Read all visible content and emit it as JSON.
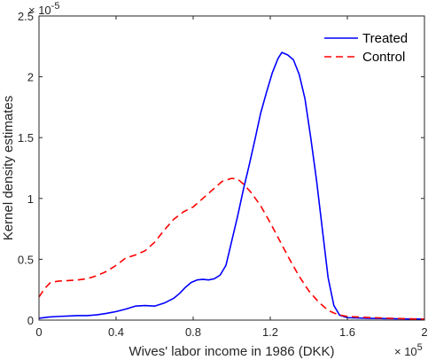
{
  "chart_data": {
    "type": "line",
    "title": "",
    "xlabel": "Wives' labor income in 1986 (DKK)",
    "ylabel": "Kernel density estimates",
    "xlim": [
      0,
      200000
    ],
    "ylim": [
      0,
      2.5e-05
    ],
    "x_ticks": [
      0,
      40000,
      80000,
      120000,
      160000,
      200000
    ],
    "x_tick_labels": [
      "0",
      "0.4",
      "0.8",
      "1.2",
      "1.6",
      "2"
    ],
    "x_multiplier": "× 10",
    "x_multiplier_exp": "5",
    "y_ticks": [
      0,
      5e-06,
      1e-05,
      1.5e-05,
      2e-05,
      2.5e-05
    ],
    "y_tick_labels": [
      "0",
      "0.5",
      "1",
      "1.5",
      "2",
      "2.5"
    ],
    "y_multiplier": "× 10",
    "y_multiplier_exp": "-5",
    "legend_position": "top-right",
    "grid": false,
    "series": [
      {
        "name": "Treated",
        "color": "#0000ff",
        "dash": "solid",
        "points": [
          [
            0,
            1.5e-07
          ],
          [
            5000,
            2.5e-07
          ],
          [
            10000,
            3e-07
          ],
          [
            15000,
            3.3e-07
          ],
          [
            20000,
            3.7e-07
          ],
          [
            25000,
            3.7e-07
          ],
          [
            30000,
            4.3e-07
          ],
          [
            35000,
            5.5e-07
          ],
          [
            40000,
            7e-07
          ],
          [
            45000,
            9e-07
          ],
          [
            50000,
            1.15e-06
          ],
          [
            55000,
            1.2e-06
          ],
          [
            60000,
            1.15e-06
          ],
          [
            65000,
            1.4e-06
          ],
          [
            70000,
            1.8e-06
          ],
          [
            73000,
            2.2e-06
          ],
          [
            76000,
            2.7e-06
          ],
          [
            79000,
            3.1e-06
          ],
          [
            82000,
            3.3e-06
          ],
          [
            85000,
            3.35e-06
          ],
          [
            88000,
            3.3e-06
          ],
          [
            91000,
            3.4e-06
          ],
          [
            94000,
            3.7e-06
          ],
          [
            97000,
            4.5e-06
          ],
          [
            100000,
            6.5e-06
          ],
          [
            103000,
            8.5e-06
          ],
          [
            106000,
            1.07e-05
          ],
          [
            109000,
            1.27e-05
          ],
          [
            112000,
            1.48e-05
          ],
          [
            115000,
            1.7e-05
          ],
          [
            118000,
            1.87e-05
          ],
          [
            121000,
            2.03e-05
          ],
          [
            124000,
            2.15e-05
          ],
          [
            126000,
            2.2e-05
          ],
          [
            129000,
            2.18e-05
          ],
          [
            132000,
            2.14e-05
          ],
          [
            135000,
            2.02e-05
          ],
          [
            138000,
            1.82e-05
          ],
          [
            141000,
            1.5e-05
          ],
          [
            144000,
            1.15e-05
          ],
          [
            147000,
            7.5e-06
          ],
          [
            150000,
            3.5e-06
          ],
          [
            153000,
            1.2e-06
          ],
          [
            156000,
            4e-07
          ],
          [
            160000,
            2e-07
          ],
          [
            170000,
            1.5e-07
          ],
          [
            180000,
            1.2e-07
          ],
          [
            190000,
            1e-07
          ],
          [
            200000,
            8e-08
          ]
        ]
      },
      {
        "name": "Control",
        "color": "#ff0000",
        "dash": "dashed",
        "points": [
          [
            0,
            1.9e-06
          ],
          [
            3000,
            2.6e-06
          ],
          [
            6000,
            3.1e-06
          ],
          [
            10000,
            3.2e-06
          ],
          [
            15000,
            3.25e-06
          ],
          [
            20000,
            3.3e-06
          ],
          [
            25000,
            3.4e-06
          ],
          [
            30000,
            3.65e-06
          ],
          [
            35000,
            4e-06
          ],
          [
            40000,
            4.5e-06
          ],
          [
            45000,
            5.1e-06
          ],
          [
            50000,
            5.35e-06
          ],
          [
            55000,
            5.7e-06
          ],
          [
            60000,
            6.4e-06
          ],
          [
            65000,
            7.4e-06
          ],
          [
            70000,
            8.3e-06
          ],
          [
            75000,
            8.9e-06
          ],
          [
            80000,
            9.3e-06
          ],
          [
            85000,
            1e-05
          ],
          [
            90000,
            1.07e-05
          ],
          [
            95000,
            1.14e-05
          ],
          [
            100000,
            1.165e-05
          ],
          [
            103000,
            1.16e-05
          ],
          [
            106000,
            1.12e-05
          ],
          [
            110000,
            1.05e-05
          ],
          [
            115000,
            9.4e-06
          ],
          [
            120000,
            8e-06
          ],
          [
            125000,
            6.5e-06
          ],
          [
            130000,
            5e-06
          ],
          [
            135000,
            3.6e-06
          ],
          [
            140000,
            2.4e-06
          ],
          [
            145000,
            1.5e-06
          ],
          [
            150000,
            8e-07
          ],
          [
            155000,
            4.5e-07
          ],
          [
            160000,
            3e-07
          ],
          [
            170000,
            2.2e-07
          ],
          [
            180000,
            1.6e-07
          ],
          [
            190000,
            1.1e-07
          ],
          [
            200000,
            8e-08
          ]
        ]
      }
    ]
  }
}
